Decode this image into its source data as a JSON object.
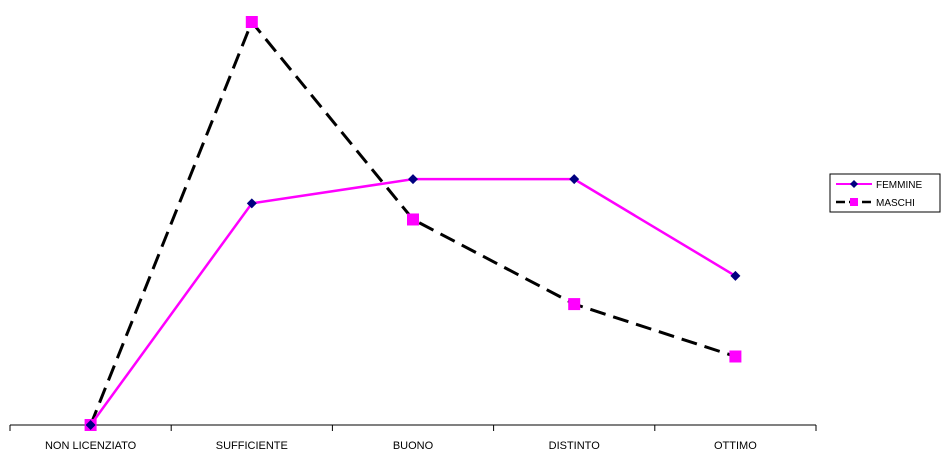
{
  "chart_data": {
    "type": "line",
    "title": "",
    "xlabel": "",
    "ylabel": "",
    "categories": [
      "NON LICENZIATO",
      "SUFFICIENTE",
      "BUONO",
      "DISTINTO",
      "OTTIMO"
    ],
    "ylim": [
      0,
      100
    ],
    "grid": false,
    "legend_position": "right",
    "series": [
      {
        "name": "FEMMINE",
        "values": [
          0,
          55,
          61,
          61,
          37
        ],
        "color": "#ff00ff",
        "line_style": "solid",
        "marker": "diamond",
        "marker_color": "#000080"
      },
      {
        "name": "MASCHI",
        "values": [
          0,
          100,
          51,
          30,
          17
        ],
        "color": "#000000",
        "line_style": "dashed",
        "marker": "square",
        "marker_color": "#ff00ff"
      }
    ]
  }
}
